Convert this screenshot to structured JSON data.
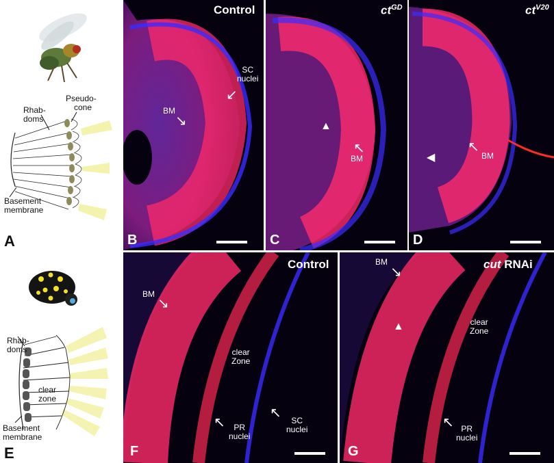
{
  "panel_letters": {
    "a": "A",
    "b": "B",
    "c": "C",
    "d": "D",
    "e": "E",
    "f": "F",
    "g": "G"
  },
  "panel_titles": {
    "b": "Control",
    "c_main": "ct",
    "c_sup": "GD",
    "d_main": "ct",
    "d_sup": "V20",
    "f": "Control",
    "g_main": "cut",
    "g_rest": " RNAi"
  },
  "labels": {
    "bm": "BM",
    "sc_nuclei_line1": "SC",
    "sc_nuclei_line2": "nuclei",
    "pr_nuclei_line1": "PR",
    "pr_nuclei_line2": "nuclei",
    "clear_zone_line1": "clear",
    "clear_zone_line2": "Zone"
  },
  "schematic_a": {
    "rhabdoms_line1": "Rhab-",
    "rhabdoms_line2": "doms",
    "pseudocone_line1": "Pseudo-",
    "pseudocone_line2": "cone",
    "basement_line1": "Basement",
    "basement_line2": "membrane"
  },
  "schematic_e": {
    "rhabdoms_line1": "Rhab-",
    "rhabdoms_line2": "doms",
    "clear_line1": "clear",
    "clear_line2": "zone",
    "basement_line1": "Basement",
    "basement_line2": "membrane"
  },
  "colors": {
    "stain_red": "#ff2a55",
    "stain_blue": "#3a2cff",
    "background": "#06010f",
    "light": "#f3f1a0"
  }
}
